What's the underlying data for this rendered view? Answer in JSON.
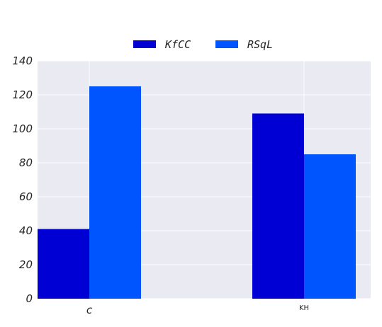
{
  "chart_data": {
    "type": "bar",
    "categories": [
      "c",
      "KH"
    ],
    "series": [
      {
        "name": "KfCC",
        "values": [
          41,
          109
        ],
        "color": "#0000d4"
      },
      {
        "name": "RSqL",
        "values": [
          125,
          85
        ],
        "color": "#0055ff"
      }
    ],
    "ylim": [
      0,
      140
    ],
    "yticks": [
      0,
      20,
      40,
      60,
      80,
      100,
      120,
      140
    ],
    "grid": true,
    "legend_position": "top-center",
    "background_color": "#eaeaf2",
    "title": "",
    "xlabel": "",
    "ylabel": ""
  }
}
